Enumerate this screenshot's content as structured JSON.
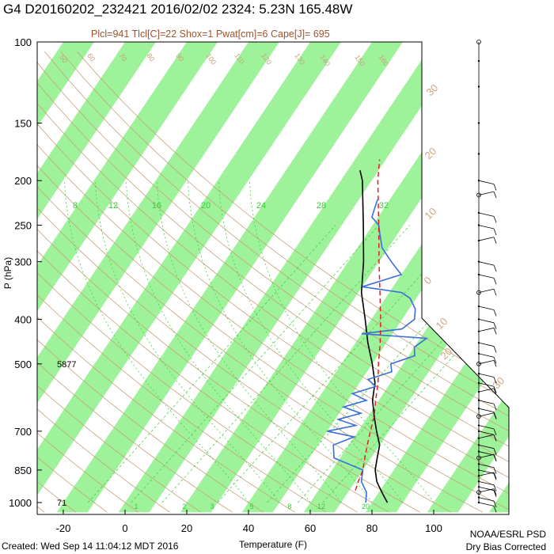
{
  "header": {
    "title": "G4 D20160202_232421 2016/02/02 2324:  5.23N 165.48W",
    "subtitle": "Plcl=941 Tlcl[C]=22 Shox=1 Pwat[cm]=6 Cape[J]= 695"
  },
  "footer": {
    "created": "Created: Wed Sep 14 11:04:12 MDT 2016",
    "credit_line1": "NOAA/ESRL PSD",
    "credit_line2": "Dry Bias Corrected"
  },
  "colors": {
    "temperature": "#000000",
    "dewpoint": "#3a6fd8",
    "parcel": "#e02020",
    "band": "#9ef29a",
    "adiabat": "#c8a07a",
    "mixing_ratio": "#33cc33"
  },
  "chart_data": {
    "type": "line",
    "title": "",
    "xlabel": "Temperature (F)",
    "ylabel": "P (hPa)",
    "xlim": [
      -30,
      120
    ],
    "ylim": [
      1000,
      100
    ],
    "y_scale": "log",
    "x_ticks": [
      "-20",
      "0",
      "20",
      "40",
      "60",
      "80",
      "100"
    ],
    "y_ticks": [
      "100",
      "150",
      "200",
      "250",
      "300",
      "400",
      "500",
      "700",
      "850",
      "1000"
    ],
    "right_temperature_labels": [
      "30",
      "20",
      "10",
      "0",
      "10",
      "20",
      "30"
    ],
    "mixing_ratio_labels": [
      "8",
      "12",
      "16",
      "20",
      "24",
      "28",
      "32"
    ],
    "mixing_ratio_bottom_labels": [
      "1",
      "2",
      "3",
      "5",
      "8",
      "12",
      "20"
    ],
    "adiabat_labels": [
      "50",
      "60",
      "70",
      "80",
      "90",
      "100",
      "110",
      "120",
      "130",
      "140",
      "150",
      "160"
    ],
    "annotations": [
      {
        "text": "5877",
        "pressure": 500
      },
      {
        "text": "71",
        "pressure": 1000
      }
    ],
    "series": [
      {
        "key": "temperature",
        "pressure": [
          1000,
          975,
          950,
          925,
          900,
          850,
          800,
          750,
          700,
          650,
          600,
          550,
          500,
          450,
          400,
          350,
          300,
          250,
          200,
          190
        ],
        "temperature_F": [
          85,
          83,
          81,
          79,
          77,
          74,
          72,
          70,
          66,
          62,
          58,
          55,
          50,
          44,
          38,
          31,
          25,
          17,
          7,
          4
        ]
      },
      {
        "key": "dewpoint",
        "pressure": [
          1000,
          975,
          950,
          925,
          900,
          850,
          800,
          750,
          720,
          700,
          680,
          660,
          640,
          620,
          600,
          580,
          560,
          540,
          520,
          500,
          480,
          460,
          440,
          430,
          420,
          400,
          380,
          360,
          350,
          340,
          320,
          300,
          280,
          260,
          250,
          240,
          220
        ],
        "dewpoint_F": [
          78,
          77,
          76,
          74,
          72,
          70,
          58,
          55,
          60,
          50,
          58,
          51,
          57,
          50,
          56,
          50,
          56,
          52,
          58,
          56,
          62,
          60,
          62,
          40,
          52,
          54,
          52,
          48,
          44,
          30,
          40,
          34,
          28,
          24,
          22,
          18,
          16
        ]
      },
      {
        "key": "parcel",
        "pressure": [
          941,
          900,
          850,
          800,
          750,
          700,
          650,
          600,
          550,
          500,
          450,
          400,
          350,
          300,
          250,
          200,
          180
        ],
        "temperature_F": [
          72,
          71,
          70,
          68,
          66,
          64,
          62,
          59,
          56,
          52,
          48,
          43,
          37,
          30,
          22,
          12,
          8
        ]
      }
    ],
    "wind_barbs": true,
    "background": "skew-T log-P diagram with green isotherm bands, dry adiabats, mixing ratio lines"
  }
}
